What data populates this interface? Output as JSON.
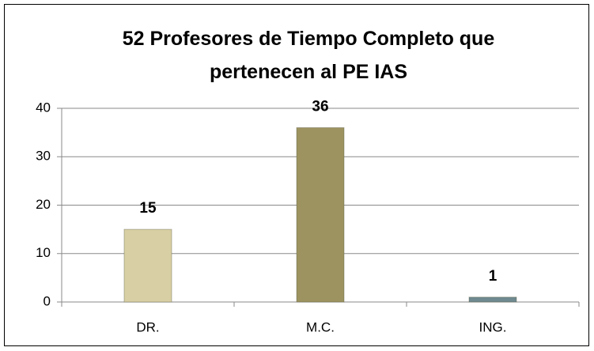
{
  "chart_data": {
    "type": "bar",
    "title": "52 Profesores de Tiempo Completo que pertenecen al PE IAS",
    "categories": [
      "DR.",
      "M.C.",
      "ING."
    ],
    "values": [
      15,
      36,
      1
    ],
    "colors": [
      "#d8cfa4",
      "#9c9360",
      "#6f8a90"
    ],
    "ylim": [
      0,
      40
    ],
    "yticks": [
      0,
      10,
      20,
      30,
      40
    ],
    "grid": true
  }
}
